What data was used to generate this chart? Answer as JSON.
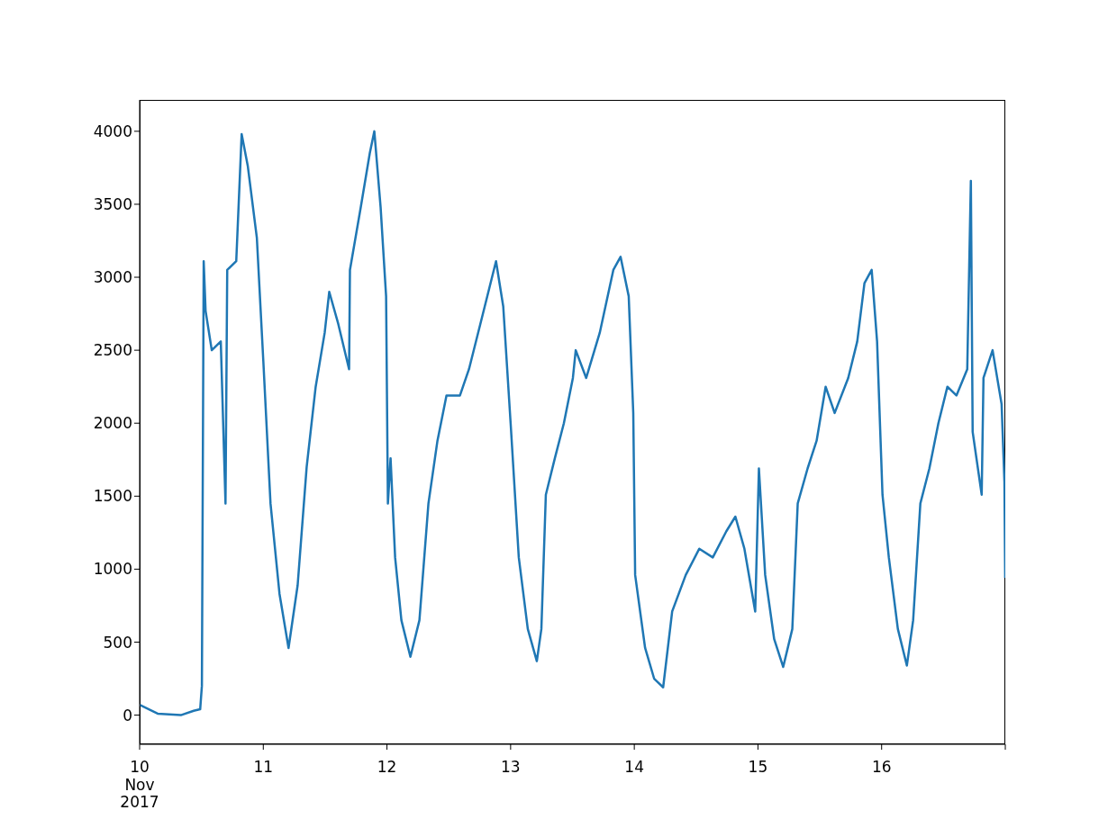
{
  "chart_data": {
    "type": "line",
    "x": [
      "2017-11-10T00:00",
      "2017-11-10T03:30",
      "2017-11-10T08:00",
      "2017-11-10T10:30",
      "2017-11-10T11:45",
      "2017-11-10T12:05",
      "2017-11-10T12:26",
      "2017-11-10T12:48",
      "2017-11-10T14:00",
      "2017-11-10T15:45",
      "2017-11-10T16:40",
      "2017-11-10T17:00",
      "2017-11-10T18:45",
      "2017-11-10T19:48",
      "2017-11-10T21:00",
      "2017-11-10T22:45",
      "2017-11-11T00:00",
      "2017-11-11T01:24",
      "2017-11-11T03:09",
      "2017-11-11T04:54",
      "2017-11-11T06:40",
      "2017-11-11T08:25",
      "2017-11-11T10:10",
      "2017-11-11T11:55",
      "2017-11-11T12:48",
      "2017-11-11T14:33",
      "2017-11-11T16:39",
      "2017-11-11T16:49",
      "2017-11-11T18:55",
      "2017-11-11T20:40",
      "2017-11-11T21:33",
      "2017-11-11T22:46",
      "2017-11-11T23:50",
      "2017-11-12T00:11",
      "2017-11-12T00:42",
      "2017-11-12T01:35",
      "2017-11-12T02:48",
      "2017-11-12T04:33",
      "2017-11-12T06:18",
      "2017-11-12T08:03",
      "2017-11-12T09:48",
      "2017-11-12T11:33",
      "2017-11-12T14:10",
      "2017-11-12T15:55",
      "2017-11-12T18:33",
      "2017-11-12T21:10",
      "2017-11-12T22:34",
      "2017-11-13T00:00",
      "2017-11-13T01:35",
      "2017-11-13T03:20",
      "2017-11-13T05:05",
      "2017-11-13T05:58",
      "2017-11-13T06:50",
      "2017-11-13T08:35",
      "2017-11-13T10:20",
      "2017-11-13T12:05",
      "2017-11-13T12:38",
      "2017-11-13T14:40",
      "2017-11-13T17:18",
      "2017-11-13T19:56",
      "2017-11-13T21:20",
      "2017-11-13T22:55",
      "2017-11-13T23:48",
      "2017-11-14T00:10",
      "2017-11-14T02:06",
      "2017-11-14T03:51",
      "2017-11-14T05:36",
      "2017-11-14T07:21",
      "2017-11-14T09:59",
      "2017-11-14T12:37",
      "2017-11-14T15:14",
      "2017-11-14T17:52",
      "2017-11-14T19:37",
      "2017-11-14T21:22",
      "2017-11-14T23:28",
      "2017-11-15T00:11",
      "2017-11-15T01:24",
      "2017-11-15T03:09",
      "2017-11-15T04:54",
      "2017-11-15T06:40",
      "2017-11-15T07:43",
      "2017-11-15T09:38",
      "2017-11-15T11:23",
      "2017-11-15T13:08",
      "2017-11-15T14:53",
      "2017-11-15T17:31",
      "2017-11-15T19:16",
      "2017-11-15T20:40",
      "2017-11-15T22:04",
      "2017-11-15T23:07",
      "2017-11-16T00:10",
      "2017-11-16T01:24",
      "2017-11-16T03:09",
      "2017-11-16T04:54",
      "2017-11-16T06:07",
      "2017-11-16T07:31",
      "2017-11-16T09:16",
      "2017-11-16T11:01",
      "2017-11-16T12:46",
      "2017-11-16T14:31",
      "2017-11-16T16:37",
      "2017-11-16T17:19",
      "2017-11-16T17:40",
      "2017-11-16T19:25",
      "2017-11-16T19:46",
      "2017-11-16T21:32",
      "2017-11-16T23:17",
      "2017-11-16T23:50",
      "2017-11-16T23:59"
    ],
    "series": [
      {
        "color": "#1f77b4",
        "values": [
          70,
          10,
          0,
          30,
          40,
          200,
          3110,
          2770,
          2500,
          2560,
          1450,
          3050,
          3110,
          3980,
          3760,
          3270,
          2430,
          1450,
          830,
          460,
          890,
          1700,
          2250,
          2620,
          2900,
          2680,
          2370,
          3050,
          3480,
          3850,
          4000,
          3480,
          2870,
          1450,
          1760,
          1080,
          650,
          400,
          650,
          1450,
          1880,
          2190,
          2190,
          2370,
          2740,
          3110,
          2800,
          2000,
          1080,
          590,
          370,
          590,
          1510,
          1760,
          2000,
          2310,
          2500,
          2310,
          2620,
          3050,
          3140,
          2870,
          2070,
          960,
          460,
          250,
          190,
          710,
          960,
          1140,
          1080,
          1260,
          1360,
          1140,
          710,
          1690,
          960,
          520,
          330,
          590,
          1450,
          1690,
          1880,
          2250,
          2070,
          2310,
          2560,
          2960,
          3050,
          2560,
          1510,
          1080,
          590,
          340,
          650,
          1450,
          1690,
          2000,
          2250,
          2190,
          2370,
          3660,
          1940,
          1510,
          2310,
          2500,
          2130,
          1600,
          940
        ]
      }
    ],
    "xlim": [
      "2017-11-10",
      "2017-11-17"
    ],
    "xticks": [
      {
        "value": "2017-11-10",
        "label": "10\nNov\n2017"
      },
      {
        "value": "2017-11-11",
        "label": "11"
      },
      {
        "value": "2017-11-12",
        "label": "12"
      },
      {
        "value": "2017-11-13",
        "label": "13"
      },
      {
        "value": "2017-11-14",
        "label": "14"
      },
      {
        "value": "2017-11-15",
        "label": "15"
      },
      {
        "value": "2017-11-16",
        "label": "16"
      },
      {
        "value": "2017-11-17",
        "label": null
      }
    ],
    "ylim": [
      -200,
      4215
    ],
    "yticks": [
      0,
      500,
      1000,
      1500,
      2000,
      2500,
      3000,
      3500,
      4000
    ],
    "line_style": "solid"
  }
}
